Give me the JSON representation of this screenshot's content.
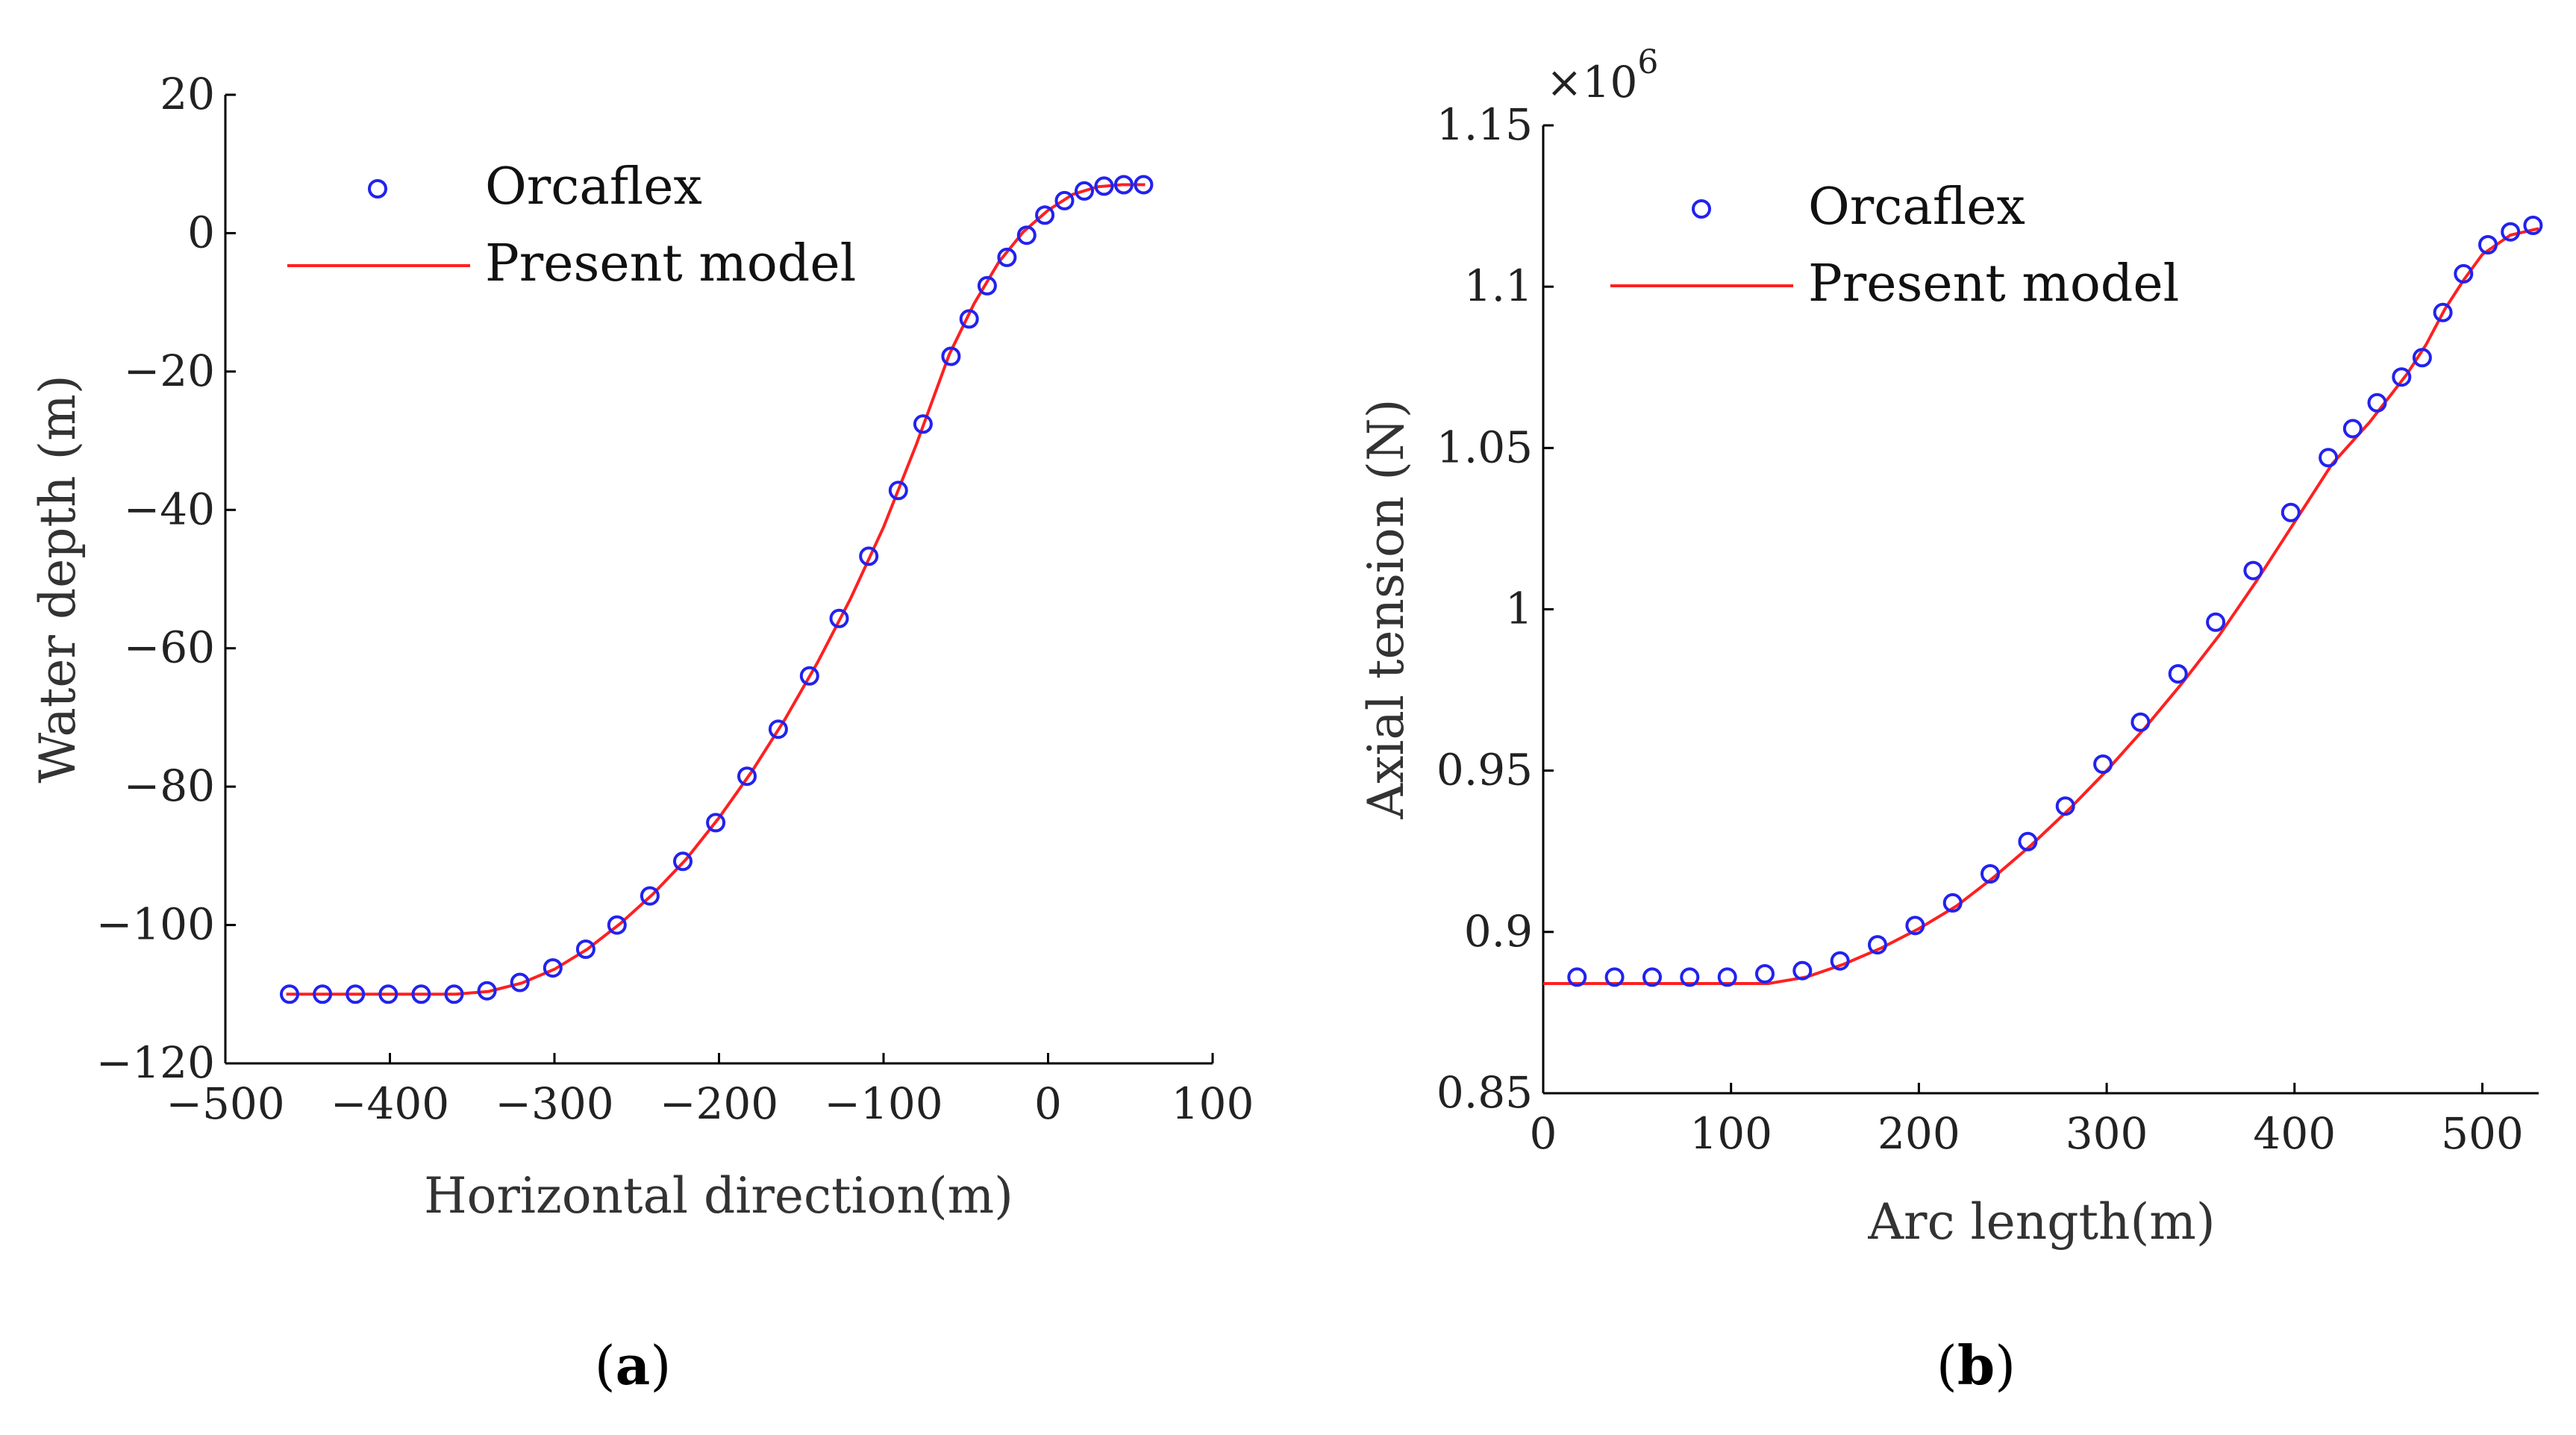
{
  "chart_data": [
    {
      "type": "line",
      "panel_label": "a",
      "title": "",
      "xlabel": "Horizontal direction(m)",
      "ylabel": "Water depth (m)",
      "xlim": [
        -500,
        100
      ],
      "ylim": [
        -120,
        20
      ],
      "xticks": [
        "−500",
        "−400",
        "−300",
        "−200",
        "−100",
        "0",
        "100"
      ],
      "xtick_values": [
        -500,
        -400,
        -300,
        -200,
        -100,
        0,
        100
      ],
      "yticks": [
        "20",
        "0",
        "−20",
        "−40",
        "−60",
        "−80",
        "−100",
        "−120"
      ],
      "ytick_values": [
        20,
        0,
        -20,
        -40,
        -60,
        -80,
        -100,
        -120
      ],
      "exponent_label": "",
      "legend": {
        "location": "top-left",
        "entries": [
          "Orcaflex",
          "Present model"
        ]
      },
      "series": [
        {
          "name": "Orcaflex",
          "style": "markers",
          "color": "#2222ee",
          "x": [
            -461,
            -441,
            -421,
            -401,
            -381,
            -361,
            -341,
            -321,
            -301,
            -281,
            -262,
            -242,
            -222,
            -202,
            -183,
            -164,
            -145,
            -127,
            -109,
            -91,
            -76,
            -59,
            -48,
            -37,
            -25,
            -13,
            -2,
            10,
            22,
            34,
            46,
            58
          ],
          "y": [
            -110,
            -110,
            -110,
            -110,
            -110,
            -110,
            -109.5,
            -108.3,
            -106.2,
            -103.5,
            -100,
            -95.8,
            -90.8,
            -85.2,
            -78.5,
            -71.7,
            -64,
            -55.7,
            -46.7,
            -37.2,
            -27.6,
            -17.8,
            -12.4,
            -7.6,
            -3.5,
            -0.3,
            2.6,
            4.7,
            6.1,
            6.8,
            7,
            7
          ]
        },
        {
          "name": "Present model",
          "style": "line",
          "color": "#ff2020",
          "x": [
            -463,
            -440,
            -420,
            -400,
            -380,
            -360,
            -340,
            -320,
            -300,
            -280,
            -260,
            -240,
            -220,
            -200,
            -180,
            -160,
            -140,
            -120,
            -100,
            -80,
            -60,
            -45,
            -30,
            -15,
            0,
            15,
            30,
            45,
            59
          ],
          "y": [
            -110,
            -110,
            -110,
            -110,
            -110,
            -110,
            -109.6,
            -108.4,
            -106.4,
            -103.5,
            -99.8,
            -95.5,
            -90.5,
            -84.5,
            -77.8,
            -70.3,
            -62,
            -52.8,
            -42.5,
            -30.5,
            -17.5,
            -10.2,
            -4.2,
            0.2,
            3.3,
            5.6,
            6.7,
            7,
            7
          ]
        }
      ]
    },
    {
      "type": "line",
      "panel_label": "b",
      "title": "",
      "xlabel": "Arc length(m)",
      "ylabel": "Axial tension (N)",
      "xlim": [
        0,
        530
      ],
      "ylim": [
        0.85,
        1.15
      ],
      "xticks": [
        "0",
        "100",
        "200",
        "300",
        "400",
        "500"
      ],
      "xtick_values": [
        0,
        100,
        200,
        300,
        400,
        500
      ],
      "yticks": [
        "1.15",
        "1.1",
        "1.05",
        "1",
        "0.95",
        "0.9",
        "0.85"
      ],
      "ytick_values": [
        1.15,
        1.1,
        1.05,
        1.0,
        0.95,
        0.9,
        0.85
      ],
      "exponent_label": "×10",
      "exponent_power": "6",
      "legend": {
        "location": "top-left",
        "entries": [
          "Orcaflex",
          "Present model"
        ]
      },
      "series": [
        {
          "name": "Orcaflex",
          "style": "markers",
          "color": "#2222ee",
          "x": [
            18,
            38,
            58,
            78,
            98,
            118,
            138,
            158,
            178,
            198,
            218,
            238,
            258,
            278,
            298,
            318,
            338,
            358,
            378,
            398,
            418,
            431,
            444,
            457,
            468,
            479,
            490,
            503,
            515,
            527
          ],
          "y": [
            0.886,
            0.886,
            0.886,
            0.886,
            0.886,
            0.887,
            0.888,
            0.891,
            0.896,
            0.902,
            0.909,
            0.918,
            0.928,
            0.939,
            0.952,
            0.965,
            0.98,
            0.996,
            1.012,
            1.03,
            1.047,
            1.056,
            1.064,
            1.072,
            1.078,
            1.092,
            1.104,
            1.113,
            1.117,
            1.119
          ]
        },
        {
          "name": "Present model",
          "style": "line",
          "color": "#ff2020",
          "x": [
            0,
            20,
            40,
            60,
            80,
            100,
            120,
            140,
            160,
            180,
            200,
            220,
            240,
            260,
            280,
            300,
            320,
            340,
            360,
            380,
            400,
            420,
            440,
            460,
            470,
            480,
            490,
            500,
            515,
            530
          ],
          "y": [
            0.884,
            0.884,
            0.884,
            0.884,
            0.884,
            0.884,
            0.884,
            0.886,
            0.89,
            0.895,
            0.901,
            0.908,
            0.917,
            0.927,
            0.938,
            0.95,
            0.963,
            0.977,
            0.992,
            1.009,
            1.027,
            1.045,
            1.058,
            1.073,
            1.082,
            1.093,
            1.102,
            1.11,
            1.116,
            1.118
          ]
        }
      ]
    }
  ]
}
